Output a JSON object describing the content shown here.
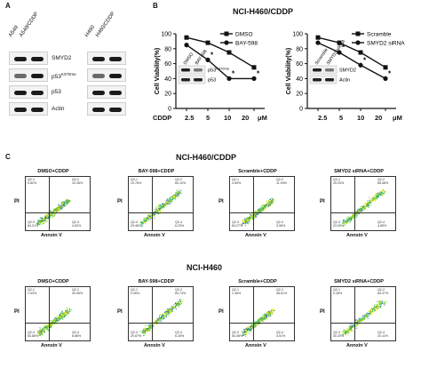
{
  "panel_a": {
    "letter": "A",
    "left_blot": {
      "lanes": [
        "A549",
        "A549/CDDP"
      ]
    },
    "right_blot": {
      "lanes": [
        "H460",
        "H460/CDDP"
      ]
    },
    "rows": [
      "SMYD2",
      "p53",
      "p53",
      "Actin"
    ],
    "p53_mod_suffix": "K370me"
  },
  "panel_b": {
    "letter": "B",
    "title": "NCI-H460/CDDP",
    "conc_label": "CDDP",
    "conc_unit": "μM",
    "conc_ticks": [
      "2.5",
      "5",
      "10",
      "20"
    ],
    "left_chart": {
      "legend": [
        "DMSO",
        "BAY-598"
      ],
      "inset_lanes": [
        "DMSO",
        "BAY-598"
      ],
      "inset_rows": [
        "p53",
        "p53"
      ],
      "inset_mod_suffix": "K370me",
      "star": "*"
    },
    "right_chart": {
      "legend": [
        "Scramble",
        "SMYD2 siRNA"
      ],
      "inset_lanes": [
        "Scramble",
        "SMYD2 siRNA"
      ],
      "inset_rows": [
        "SMYD2",
        "Actin"
      ],
      "star": "*"
    }
  },
  "chart_data": [
    {
      "type": "line",
      "title": "NCI-H460/CDDP",
      "xlabel": "CDDP μM",
      "ylabel": "Cell Viability(%)",
      "categories": [
        "2.5",
        "5",
        "10",
        "20"
      ],
      "yticks": [
        0,
        20,
        40,
        60,
        80,
        100
      ],
      "ylim": [
        0,
        100
      ],
      "grid": false,
      "legend_position": "top-right",
      "series": [
        {
          "name": "DMSO",
          "values": [
            95,
            88,
            75,
            55
          ]
        },
        {
          "name": "BAY-598",
          "values": [
            85,
            65,
            40,
            40
          ]
        }
      ]
    },
    {
      "type": "line",
      "title": "NCI-H460/CDDP",
      "xlabel": "CDDP μM",
      "ylabel": "Cell Viability(%)",
      "categories": [
        "2.5",
        "5",
        "10",
        "20"
      ],
      "yticks": [
        0,
        20,
        40,
        60,
        80,
        100
      ],
      "ylim": [
        0,
        100
      ],
      "grid": false,
      "legend_position": "top-right",
      "series": [
        {
          "name": "Scramble",
          "values": [
            95,
            88,
            75,
            55
          ]
        },
        {
          "name": "SMYD2 siRNA",
          "values": [
            88,
            75,
            58,
            40
          ]
        }
      ]
    }
  ],
  "panel_c": {
    "letter": "C",
    "group_titles": [
      "NCI-H460/CDDP",
      "NCI-H460"
    ],
    "axis_y": "PI",
    "axis_x": "Annxin V",
    "plots": [
      {
        "label": "DMSO+CDDP",
        "q1": "Q2-1",
        "q1v": "0.82%",
        "q2": "Q2-2",
        "q2v": "10.35%",
        "q3": "Q2-3",
        "q3v": "84.21%",
        "q4": "Q2-4",
        "q4v": "4.62%"
      },
      {
        "label": "BAY-598+CDDP",
        "q1": "Q2-1",
        "q1v": "10.76%",
        "q2": "Q2-2",
        "q2v": "60.10%",
        "q3": "Q2-3",
        "q3v": "29.46%",
        "q4": "Q2-4",
        "q4v": "6.23%"
      },
      {
        "label": "Scramble+CDDP",
        "q1": "Q2-1",
        "q1v": "4.55%",
        "q2": "Q2-2",
        "q2v": "11.94%",
        "q3": "Q2-3",
        "q3v": "84.27%",
        "q4": "Q2-4",
        "q4v": "3.96%"
      },
      {
        "label": "SMYD2 siRNA+CDDP",
        "q1": "Q2-1",
        "q1v": "20.20%",
        "q2": "Q2-2",
        "q2v": "65.68%",
        "q3": "Q2-3",
        "q3v": "23.90%",
        "q4": "Q2-4",
        "q4v": "4.85%"
      },
      {
        "label": "DMSO+CDDP",
        "q1": "Q2-1",
        "q1v": "1.03%",
        "q2": "Q2-2",
        "q2v": "49.06%",
        "q3": "Q2-3",
        "q3v": "53.86%",
        "q4": "Q2-4",
        "q4v": "6.88%"
      },
      {
        "label": "BAY-598+CDDP",
        "q1": "Q2-1",
        "q1v": "0.06%",
        "q2": "Q2-2",
        "q2v": "84.74%",
        "q3": "Q2-3",
        "q3v": "29.87%",
        "q4": "Q2-4",
        "q4v": "6.26%"
      },
      {
        "label": "Scramble+CDDP",
        "q1": "Q2-1",
        "q1v": "1.36%",
        "q2": "Q2-2",
        "q2v": "48.61%",
        "q3": "Q2-3",
        "q3v": "54.36%",
        "q4": "Q2-4",
        "q4v": "4.51%"
      },
      {
        "label": "SMYD2 siRNA+CDDP",
        "q1": "Q2-1",
        "q1v": "0.28%",
        "q2": "Q2-2",
        "q2v": "83.37%",
        "q3": "Q2-3",
        "q3v": "30.20%",
        "q4": "Q2-4",
        "q4v": "10.11%"
      }
    ]
  },
  "colors": {
    "ink": "#111111",
    "blot_bg": "#f2f2f2",
    "band": "#1a1a1a",
    "flow_dense": "#e6e600",
    "flow_mid": "#2fbf4f",
    "flow_low": "#2a55d6"
  }
}
